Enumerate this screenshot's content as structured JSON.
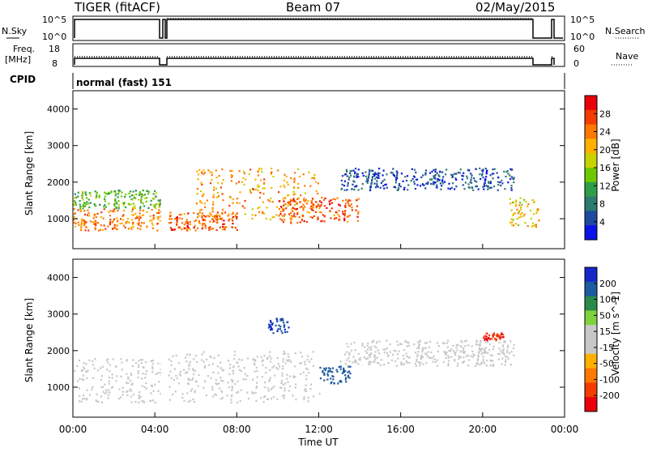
{
  "header": {
    "radar": "TIGER (fitACF)",
    "beam": "Beam 07",
    "date": "02/May/2015"
  },
  "nsky_panel": {
    "left_label": "N.Sky",
    "right_label": "N.Search",
    "left_ticks": [
      "10^5",
      "10^0"
    ],
    "right_ticks": [
      "10^5",
      "10^0"
    ]
  },
  "freq_panel": {
    "left_label_line1": "Freq.",
    "left_label_line2": "[MHz]",
    "right_label": "Nave",
    "left_ticks": [
      "18",
      "8"
    ],
    "right_ticks": [
      "60",
      "0"
    ]
  },
  "cpid": {
    "label": "CPID",
    "value": "normal (fast) 151"
  },
  "power_panel": {
    "ylabel": "Slant Range [km]",
    "yticks": [
      "4000",
      "3000",
      "2000",
      "1000"
    ],
    "colorbar_label": "Power [dB]",
    "colorbar_ticks": [
      "28",
      "24",
      "20",
      "16",
      "12",
      "8",
      "4"
    ],
    "colors": [
      "#e8000b",
      "#f23c00",
      "#ff7800",
      "#ffb000",
      "#c8d200",
      "#6ec800",
      "#2e9e48",
      "#2d7a6e",
      "#1e4aa0",
      "#0a14e6"
    ]
  },
  "velocity_panel": {
    "ylabel": "Slant Range [km]",
    "yticks": [
      "4000",
      "3000",
      "2000",
      "1000"
    ],
    "colorbar_label": "Velocity [m s^-1]",
    "colorbar_ticks": [
      "200",
      "100",
      "50",
      "15",
      "-15",
      "-50",
      "-100",
      "-200"
    ],
    "colors": [
      "#1428c8",
      "#1e5aa0",
      "#2a8a4a",
      "#7ed23a",
      "#c8c8c8",
      "#c8c8c8",
      "#ffb000",
      "#ff7800",
      "#f23c00",
      "#e8000b"
    ]
  },
  "time_axis": {
    "label": "Time UT",
    "ticks": [
      "00:00",
      "04:00",
      "08:00",
      "12:00",
      "16:00",
      "20:00",
      "00:00"
    ]
  },
  "chart_data": {
    "type": "heatmap",
    "x_range_hours": [
      0,
      24
    ],
    "y_range_km": [
      180,
      4500
    ],
    "data_gaps_hours": [
      [
        4.3,
        4.65
      ],
      [
        22.8,
        23.6
      ]
    ],
    "power_features": [
      {
        "t": [
          0,
          4.3
        ],
        "range": [
          700,
          1300
        ],
        "db": 24
      },
      {
        "t": [
          0,
          4.3
        ],
        "range": [
          1300,
          1800
        ],
        "db": 14
      },
      {
        "t": [
          4.65,
          8.0
        ],
        "range": [
          700,
          1200
        ],
        "db": 26
      },
      {
        "t": [
          6.0,
          12.0
        ],
        "range": [
          1000,
          2400
        ],
        "db": 22
      },
      {
        "t": [
          10.0,
          14.0
        ],
        "range": [
          900,
          1600
        ],
        "db": 26
      },
      {
        "t": [
          13.0,
          21.5
        ],
        "range": [
          1800,
          2400
        ],
        "db": 6
      },
      {
        "t": [
          21.3,
          22.8
        ],
        "range": [
          800,
          1600
        ],
        "db": 20
      }
    ],
    "velocity_features": [
      {
        "t": [
          0,
          4.3
        ],
        "range": [
          600,
          1800
        ],
        "v": 0
      },
      {
        "t": [
          4.65,
          12.0
        ],
        "range": [
          600,
          2000
        ],
        "v": 0
      },
      {
        "t": [
          9.5,
          10.5
        ],
        "range": [
          2500,
          2900
        ],
        "v": 200
      },
      {
        "t": [
          12.0,
          13.5
        ],
        "range": [
          1100,
          1600
        ],
        "v": 150
      },
      {
        "t": [
          13.0,
          21.5
        ],
        "range": [
          1600,
          2300
        ],
        "v": -10
      },
      {
        "t": [
          20.0,
          21.0
        ],
        "range": [
          2300,
          2500
        ],
        "v": -200
      }
    ]
  }
}
